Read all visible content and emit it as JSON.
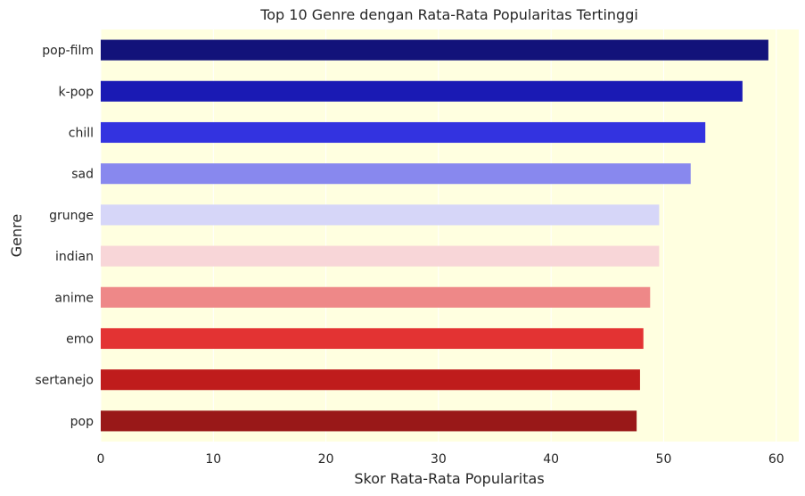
{
  "chart_data": {
    "type": "bar",
    "orientation": "horizontal",
    "title": "Top 10 Genre dengan Rata-Rata Popularitas Tertinggi",
    "xlabel": "Skor Rata-Rata Popularitas",
    "ylabel": "Genre",
    "categories": [
      "pop-film",
      "k-pop",
      "chill",
      "sad",
      "grunge",
      "indian",
      "anime",
      "emo",
      "sertanejo",
      "pop"
    ],
    "values": [
      59.3,
      57.0,
      53.7,
      52.4,
      49.6,
      49.6,
      48.8,
      48.2,
      47.9,
      47.6
    ],
    "colors": [
      "#12127a",
      "#1a1ab4",
      "#3333e0",
      "#8888ee",
      "#d6d6f8",
      "#f8d6d8",
      "#ee8888",
      "#e33333",
      "#bf1c1c",
      "#991818"
    ],
    "xlim": [
      0,
      62
    ],
    "xticks": [
      0,
      10,
      20,
      30,
      40,
      50,
      60
    ],
    "grid": true,
    "background": "#ffffe0",
    "grid_color": "#ffffff"
  }
}
